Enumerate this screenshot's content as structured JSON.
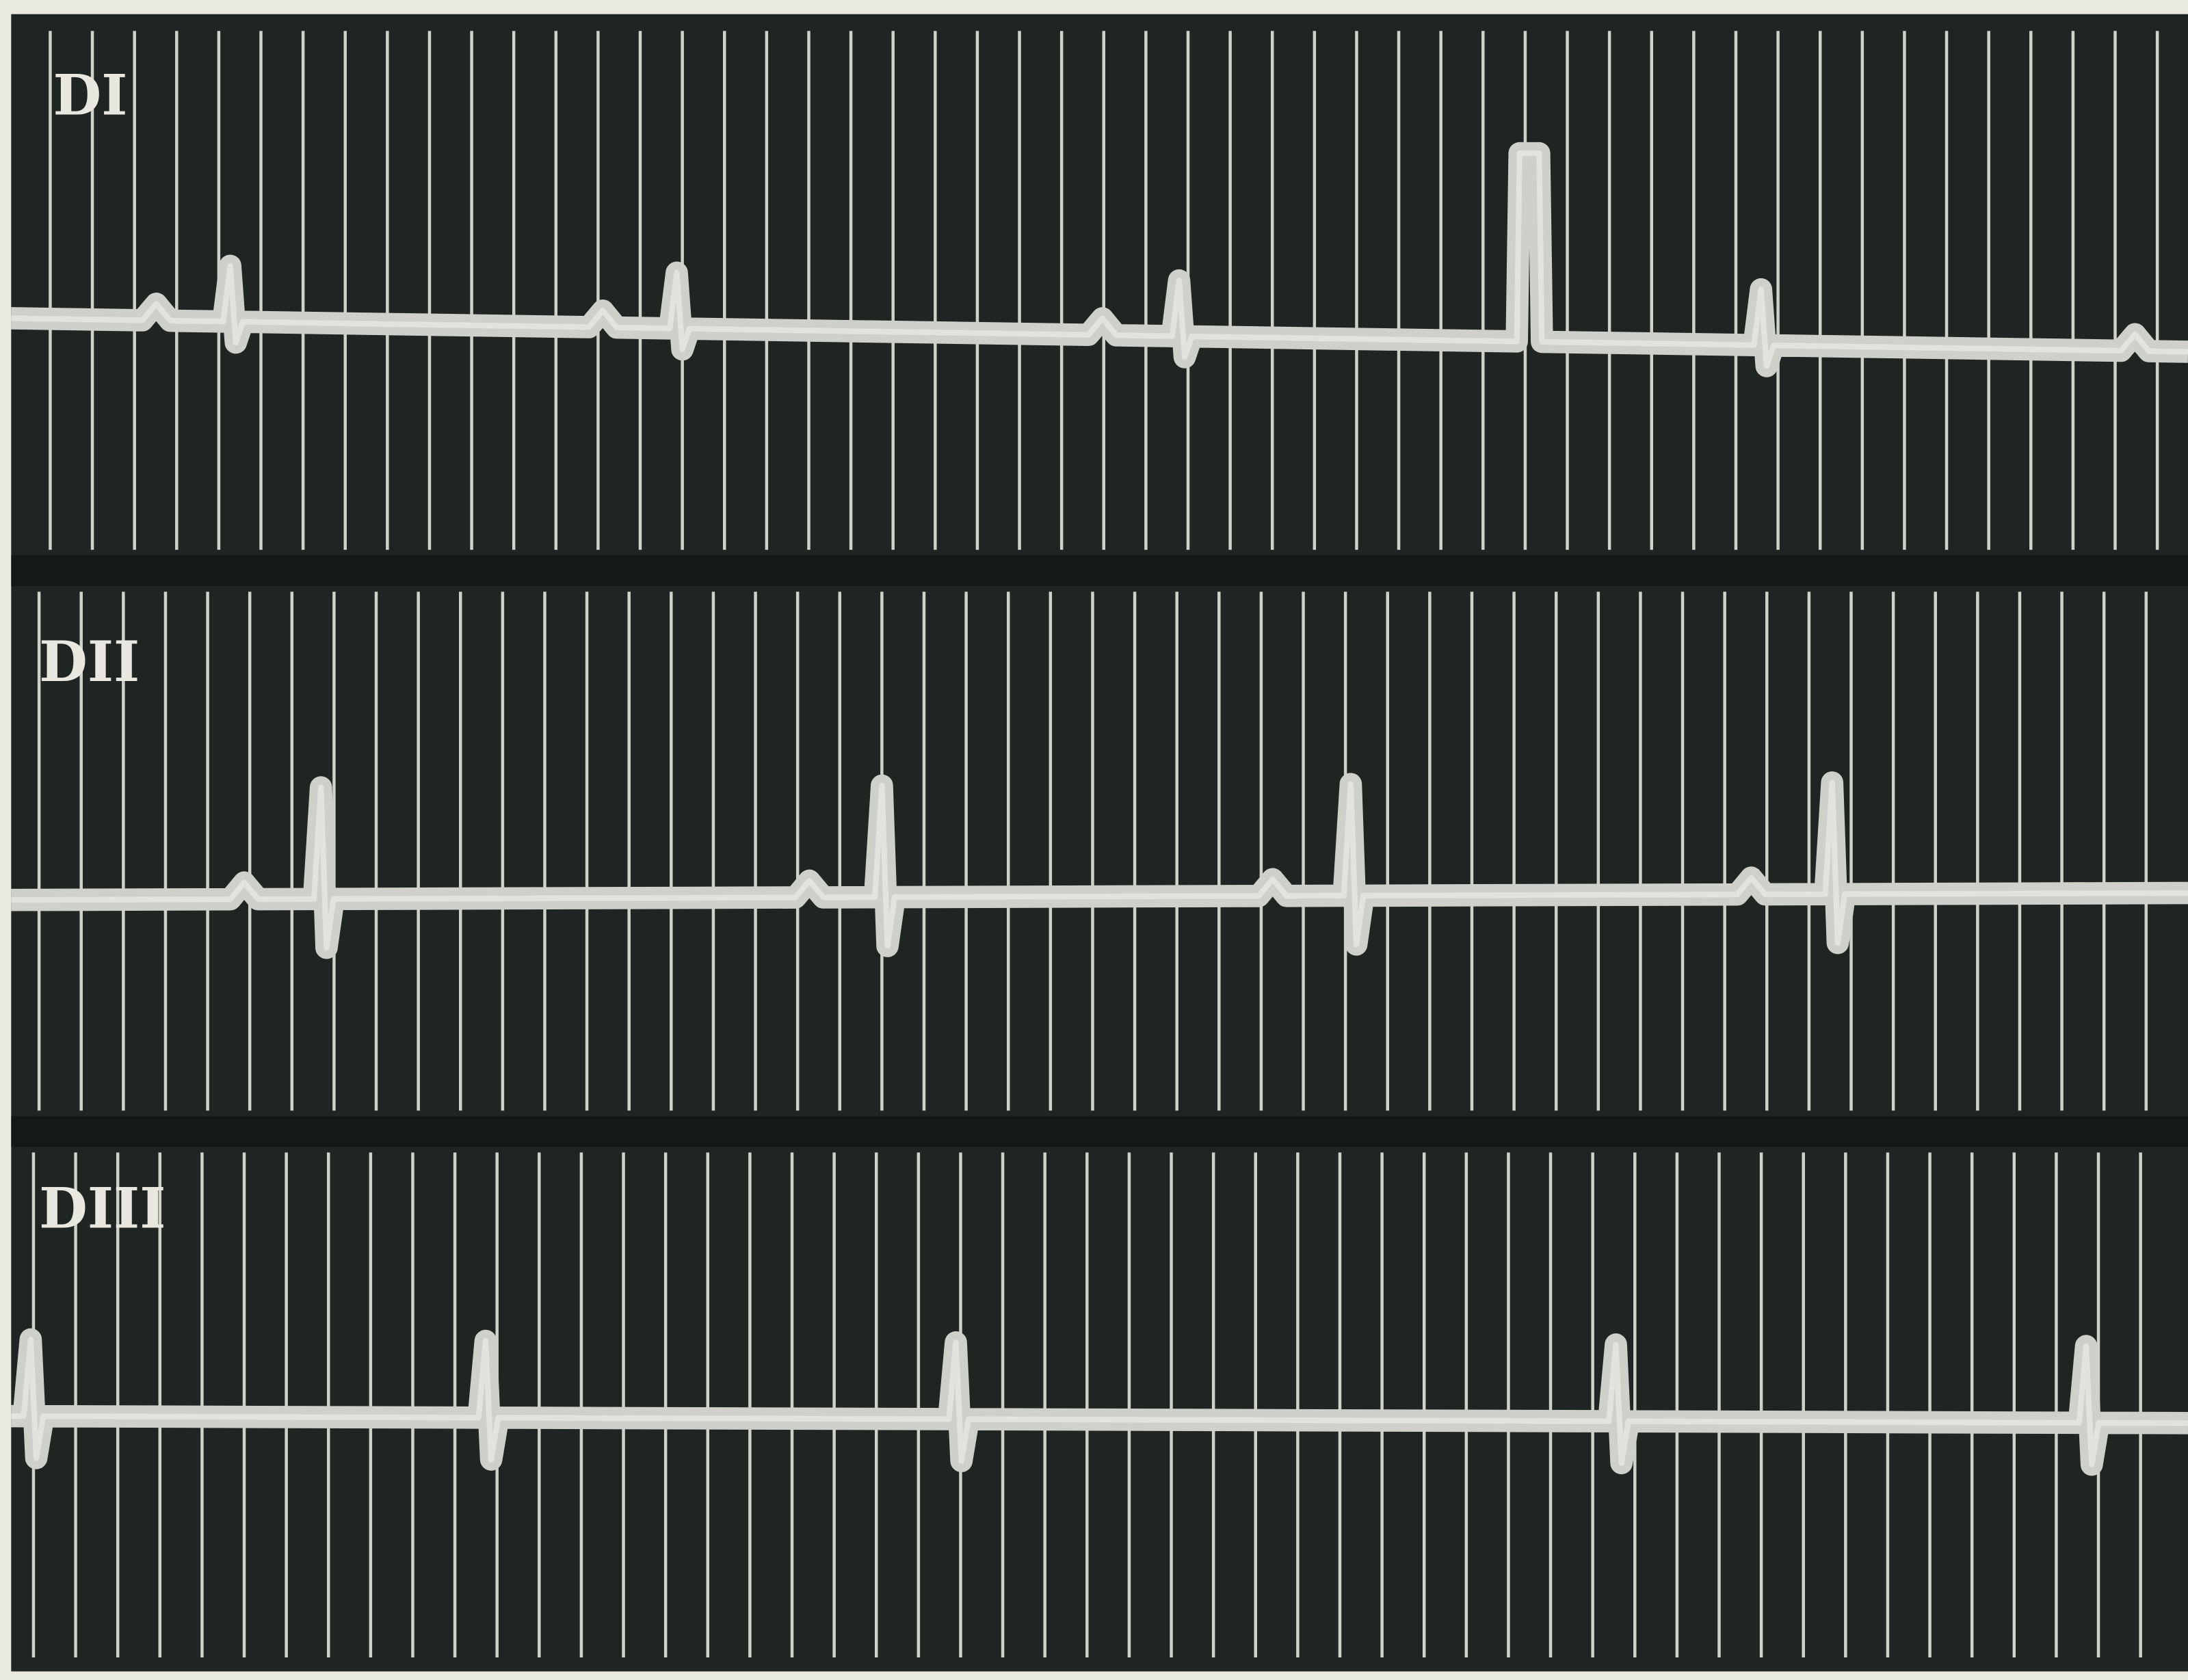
{
  "leads": [
    {
      "label": "DI"
    },
    {
      "label": "DII"
    },
    {
      "label": "DIII"
    }
  ]
}
